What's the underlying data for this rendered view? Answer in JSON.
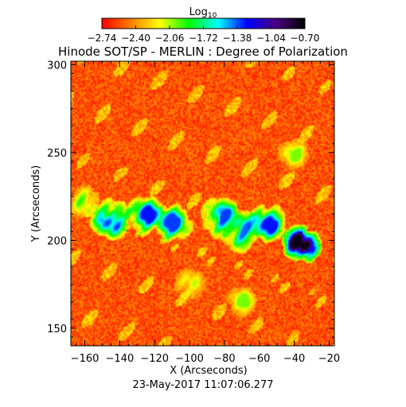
{
  "title": "Hinode SOT/SP - MERLIN : Degree of Polarization",
  "timestamp": "23-May-2017 11:07:06.277",
  "chart_data": {
    "type": "heatmap",
    "title": "Hinode SOT/SP - MERLIN : Degree of Polarization",
    "xlabel": "X (Arcseconds)",
    "ylabel": "Y (Arcseconds)",
    "xlim": [
      -168,
      -17
    ],
    "ylim": [
      140,
      302
    ],
    "x_ticks": [
      -160,
      -140,
      -120,
      -100,
      -80,
      -60,
      -40,
      -20
    ],
    "y_ticks": [
      150,
      200,
      250,
      300
    ],
    "x_tick_labels": [
      "−160",
      "−140",
      "−120",
      "−100",
      "−80",
      "−60",
      "−40",
      "−20"
    ],
    "y_tick_labels": [
      "150",
      "200",
      "250",
      "300"
    ],
    "colorbar": {
      "label_base": "Log",
      "label_sub": "10",
      "ticks": [
        -2.74,
        -2.4,
        -2.06,
        -1.72,
        -1.38,
        -1.04,
        -0.7
      ],
      "tick_labels": [
        "−2.74",
        "−2.40",
        "−2.06",
        "−1.72",
        "−1.38",
        "−1.04",
        "−0.70"
      ],
      "range": [
        -2.74,
        -0.7
      ],
      "colormap": [
        "#ff0000",
        "#ff7f00",
        "#ffff00",
        "#00ff00",
        "#00ffff",
        "#0000ff",
        "#4b0082",
        "#000000"
      ]
    },
    "features": [
      {
        "kind": "spot",
        "x": -36,
        "y": 198,
        "value": -0.75
      },
      {
        "kind": "plage",
        "x": -145,
        "y": 212,
        "value": -1.25
      },
      {
        "kind": "plage",
        "x": -125,
        "y": 214,
        "value": -1.3
      },
      {
        "kind": "plage",
        "x": -110,
        "y": 210,
        "value": -1.35
      },
      {
        "kind": "plage",
        "x": -82,
        "y": 213,
        "value": -1.35
      },
      {
        "kind": "plage",
        "x": -70,
        "y": 205,
        "value": -1.4
      },
      {
        "kind": "plage",
        "x": -55,
        "y": 210,
        "value": -1.3
      },
      {
        "kind": "network",
        "x": -160,
        "y": 222,
        "value": -1.9
      },
      {
        "kind": "network",
        "x": -40,
        "y": 250,
        "value": -2.0
      },
      {
        "kind": "network",
        "x": -70,
        "y": 165,
        "value": -2.0
      },
      {
        "kind": "network",
        "x": -100,
        "y": 175,
        "value": -2.05
      }
    ]
  }
}
